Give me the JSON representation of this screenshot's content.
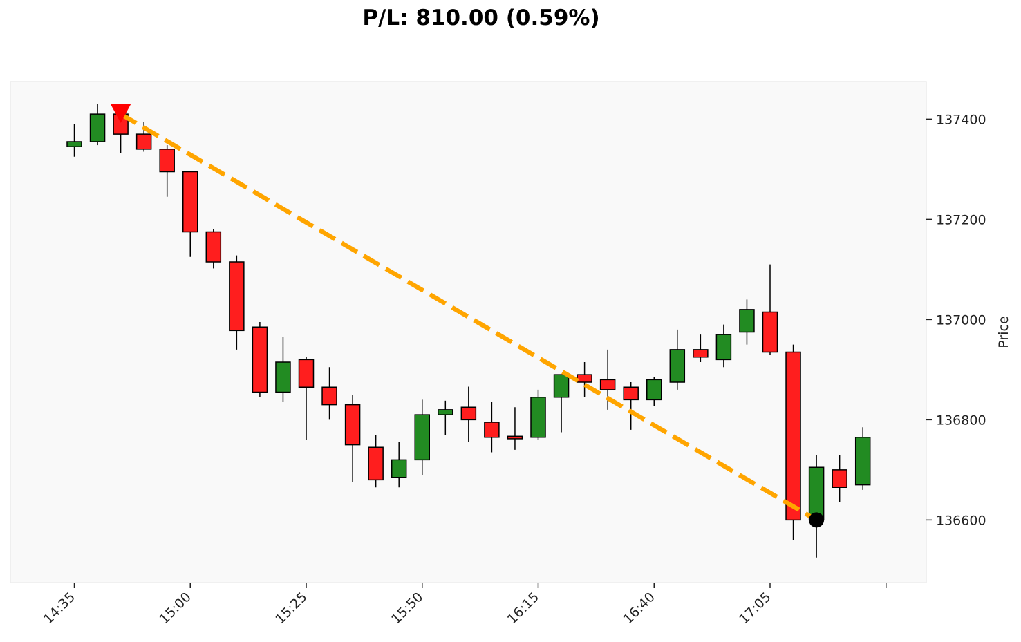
{
  "title": "P/L: 810.00 (0.59%)",
  "chart_data": {
    "type": "candlestick",
    "title": "P/L: 810.00 (0.59%)",
    "ylabel": "Price",
    "xlabel": "",
    "ylim": [
      136475,
      137475
    ],
    "yticks": [
      136600,
      136800,
      137000,
      137200,
      137400
    ],
    "xtick_labels": [
      "14:35",
      "15:00",
      "15:25",
      "15:50",
      "16:15",
      "16:40",
      "17:05",
      ""
    ],
    "xtick_index": [
      0,
      5,
      10,
      15,
      20,
      25,
      30,
      35
    ],
    "grid": false,
    "up_color": "#228B22",
    "down_color": "#FF1E1E",
    "background": "#F9F9F9",
    "candles": [
      {
        "o": 137345,
        "h": 137390,
        "l": 137325,
        "c": 137355
      },
      {
        "o": 137355,
        "h": 137430,
        "l": 137348,
        "c": 137410
      },
      {
        "o": 137410,
        "h": 137420,
        "l": 137332,
        "c": 137370
      },
      {
        "o": 137370,
        "h": 137395,
        "l": 137335,
        "c": 137340
      },
      {
        "o": 137340,
        "h": 137348,
        "l": 137245,
        "c": 137295
      },
      {
        "o": 137295,
        "h": 137295,
        "l": 137125,
        "c": 137175
      },
      {
        "o": 137175,
        "h": 137180,
        "l": 137102,
        "c": 137115
      },
      {
        "o": 137115,
        "h": 137128,
        "l": 136940,
        "c": 136978
      },
      {
        "o": 136985,
        "h": 136995,
        "l": 136845,
        "c": 136855
      },
      {
        "o": 136855,
        "h": 136965,
        "l": 136835,
        "c": 136915
      },
      {
        "o": 136920,
        "h": 136925,
        "l": 136760,
        "c": 136865
      },
      {
        "o": 136865,
        "h": 136905,
        "l": 136800,
        "c": 136830
      },
      {
        "o": 136830,
        "h": 136850,
        "l": 136675,
        "c": 136750
      },
      {
        "o": 136745,
        "h": 136770,
        "l": 136665,
        "c": 136680
      },
      {
        "o": 136685,
        "h": 136755,
        "l": 136665,
        "c": 136720
      },
      {
        "o": 136720,
        "h": 136840,
        "l": 136690,
        "c": 136810
      },
      {
        "o": 136810,
        "h": 136838,
        "l": 136770,
        "c": 136820
      },
      {
        "o": 136825,
        "h": 136866,
        "l": 136755,
        "c": 136800
      },
      {
        "o": 136795,
        "h": 136835,
        "l": 136735,
        "c": 136765
      },
      {
        "o": 136767,
        "h": 136825,
        "l": 136740,
        "c": 136762
      },
      {
        "o": 136765,
        "h": 136860,
        "l": 136760,
        "c": 136845
      },
      {
        "o": 136845,
        "h": 136890,
        "l": 136775,
        "c": 136890
      },
      {
        "o": 136890,
        "h": 136915,
        "l": 136845,
        "c": 136875
      },
      {
        "o": 136880,
        "h": 136940,
        "l": 136820,
        "c": 136860
      },
      {
        "o": 136865,
        "h": 136875,
        "l": 136780,
        "c": 136840
      },
      {
        "o": 136840,
        "h": 136885,
        "l": 136828,
        "c": 136880
      },
      {
        "o": 136875,
        "h": 136980,
        "l": 136860,
        "c": 136940
      },
      {
        "o": 136940,
        "h": 136970,
        "l": 136915,
        "c": 136925
      },
      {
        "o": 136920,
        "h": 136990,
        "l": 136905,
        "c": 136970
      },
      {
        "o": 136975,
        "h": 137040,
        "l": 136950,
        "c": 137020
      },
      {
        "o": 137015,
        "h": 137110,
        "l": 136930,
        "c": 136935
      },
      {
        "o": 136935,
        "h": 136950,
        "l": 136560,
        "c": 136600
      },
      {
        "o": 136600,
        "h": 136730,
        "l": 136525,
        "c": 136705
      },
      {
        "o": 136700,
        "h": 136730,
        "l": 136635,
        "c": 136665
      },
      {
        "o": 136670,
        "h": 136785,
        "l": 136660,
        "c": 136765
      }
    ],
    "trade": {
      "entry": {
        "index": 2,
        "price": 137410,
        "marker": "down-triangle",
        "color": "#FF0000"
      },
      "exit": {
        "index": 32,
        "price": 136600,
        "marker": "circle",
        "color": "#000000"
      },
      "line_color": "#FFA500",
      "line_style": "dashed"
    }
  }
}
